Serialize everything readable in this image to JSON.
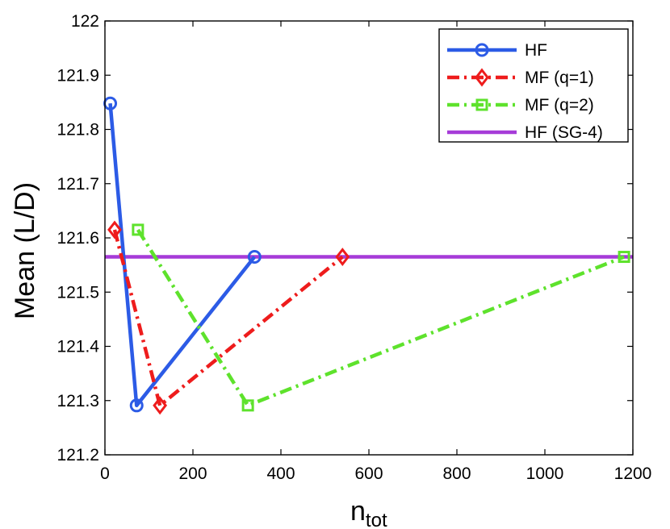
{
  "chart_data": {
    "type": "line",
    "title": "",
    "xlabel_main": "n",
    "xlabel_sub": "tot",
    "ylabel": "Mean (L/D)",
    "xlim": [
      0,
      1200
    ],
    "ylim": [
      121.2,
      122
    ],
    "xticks": [
      "0",
      "200",
      "400",
      "600",
      "800",
      "1000",
      "1200"
    ],
    "yticks": [
      "121.2",
      "121.3",
      "121.4",
      "121.5",
      "121.6",
      "121.7",
      "121.8",
      "121.9",
      "122"
    ],
    "grid": false,
    "legend_position": "top-right",
    "series": [
      {
        "name": "HF",
        "color": "#2c5be6",
        "style": "solid",
        "marker": "circle",
        "x": [
          12,
          72,
          340
        ],
        "y": [
          121.848,
          121.291,
          121.565
        ]
      },
      {
        "name": "MF (q=1)",
        "color": "#ee1c1c",
        "style": "dashdot",
        "marker": "diamond",
        "x": [
          22,
          125,
          540
        ],
        "y": [
          121.615,
          121.291,
          121.565
        ]
      },
      {
        "name": "MF (q=2)",
        "color": "#5ee22c",
        "style": "dashdot",
        "marker": "square",
        "x": [
          75,
          325,
          1180
        ],
        "y": [
          121.615,
          121.291,
          121.565
        ]
      },
      {
        "name": "HF (SG-4)",
        "color": "#a63bd8",
        "style": "solid",
        "marker": "none",
        "x": [
          0,
          1200
        ],
        "y": [
          121.565,
          121.565
        ]
      }
    ]
  }
}
